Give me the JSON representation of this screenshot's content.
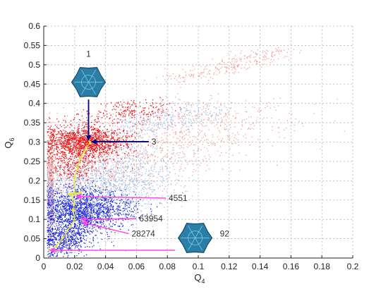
{
  "chart_data": {
    "type": "scatter",
    "xlabel": "Q",
    "xlabel_sub": "4",
    "ylabel": "Q",
    "ylabel_sub": "6",
    "xlim": [
      0,
      0.2
    ],
    "ylim": [
      0,
      0.6
    ],
    "x_ticks": [
      0,
      0.02,
      0.04,
      0.06,
      0.08,
      0.1,
      0.12,
      0.14,
      0.16,
      0.18,
      0.2
    ],
    "x_tick_labels": [
      "0",
      "0.02",
      "0.04",
      "0.06",
      "0.08",
      "0.1",
      "0.12",
      "0.14",
      "0.16",
      "0.18",
      "0.2"
    ],
    "y_ticks": [
      0,
      0.05,
      0.1,
      0.15,
      0.2,
      0.25,
      0.3,
      0.35,
      0.4,
      0.45,
      0.5,
      0.55,
      0.6
    ],
    "y_tick_labels": [
      "0",
      "0.05",
      "0.1",
      "0.15",
      "0.2",
      "0.25",
      "0.3",
      "0.35",
      "0.4",
      "0.45",
      "0.5",
      "0.55",
      "0.6"
    ],
    "grid": true,
    "colors": {
      "light_red": "#f4a0a0",
      "red": "#ee1111",
      "light_blue": "#9ec4ea",
      "blue": "#1a22dd",
      "path": "#e8e83a",
      "arrow_dark": "#00007a",
      "arrow_magenta": "#ff44ee",
      "cluster_image": "#2a7fa8"
    },
    "clouds": [
      {
        "color": "light_red",
        "center": [
          0.04,
          0.25
        ],
        "main_axis": [
          0.15,
          0.25
        ],
        "spread": [
          0.035,
          0.03
        ],
        "count": 1800
      },
      {
        "color": "light_red",
        "center": [
          0.12,
          0.5
        ],
        "main_axis": [
          0.07,
          0.08
        ],
        "spread": [
          0.01,
          0.006
        ],
        "count": 260
      },
      {
        "color": "light_blue",
        "center": [
          0.035,
          0.18
        ],
        "main_axis": [
          0.04,
          0.12
        ],
        "spread": [
          0.02,
          0.045
        ],
        "count": 1700
      },
      {
        "color": "light_blue",
        "center": [
          0.08,
          0.36
        ],
        "main_axis": [
          0.06,
          0.06
        ],
        "spread": [
          0.012,
          0.015
        ],
        "count": 320
      },
      {
        "color": "red",
        "center": [
          0.026,
          0.3
        ],
        "main_axis": [
          0.012,
          0.005
        ],
        "spread": [
          0.013,
          0.022
        ],
        "count": 1400
      },
      {
        "color": "red",
        "center": [
          0.017,
          0.24
        ],
        "main_axis": [
          0.0,
          0.03
        ],
        "spread": [
          0.009,
          0.02
        ],
        "count": 250
      },
      {
        "color": "red",
        "center": [
          0.055,
          0.38
        ],
        "main_axis": [
          0.02,
          0.03
        ],
        "spread": [
          0.012,
          0.012
        ],
        "count": 200
      },
      {
        "color": "blue",
        "center": [
          0.022,
          0.12
        ],
        "main_axis": [
          0.0,
          0.05
        ],
        "spread": [
          0.012,
          0.03
        ],
        "count": 1300
      },
      {
        "color": "blue",
        "center": [
          0.012,
          0.05
        ],
        "main_axis": [
          0.0,
          0.02
        ],
        "spread": [
          0.008,
          0.02
        ],
        "count": 500
      },
      {
        "color": "blue",
        "center": [
          0.04,
          0.12
        ],
        "main_axis": [
          0.02,
          0.03
        ],
        "spread": [
          0.01,
          0.02
        ],
        "count": 300
      }
    ],
    "path_points": [
      [
        0.03,
        0.3
      ],
      [
        0.027,
        0.28
      ],
      [
        0.024,
        0.26
      ],
      [
        0.022,
        0.235
      ],
      [
        0.02,
        0.21
      ],
      [
        0.02,
        0.17
      ],
      [
        0.016,
        0.165
      ],
      [
        0.024,
        0.17
      ],
      [
        0.018,
        0.16
      ],
      [
        0.02,
        0.14
      ],
      [
        0.019,
        0.125
      ],
      [
        0.02,
        0.1
      ],
      [
        0.017,
        0.08
      ],
      [
        0.012,
        0.05
      ],
      [
        0.008,
        0.03
      ],
      [
        0.004,
        0.02
      ]
    ],
    "annotations": [
      {
        "label": "1",
        "kind": "cluster_image",
        "image_at": [
          0.029,
          0.455
        ],
        "arrow_from": [
          0.029,
          0.41
        ],
        "arrow_to": [
          0.029,
          0.305
        ],
        "color": "arrow_dark"
      },
      {
        "label": "3",
        "arrow_from": [
          0.068,
          0.301
        ],
        "arrow_to": [
          0.031,
          0.301
        ],
        "color": "arrow_dark"
      },
      {
        "label": "4551",
        "arrow_from": [
          0.079,
          0.155
        ],
        "arrow_to": [
          0.021,
          0.159
        ],
        "color": "arrow_magenta"
      },
      {
        "label": "63954",
        "arrow_from": [
          0.06,
          0.102
        ],
        "arrow_to": [
          0.024,
          0.1
        ],
        "color": "arrow_magenta"
      },
      {
        "label": "28274",
        "arrow_from": [
          0.055,
          0.063
        ],
        "arrow_to": [
          0.025,
          0.092
        ],
        "color": "arrow_magenta"
      },
      {
        "label": "92",
        "kind": "cluster_image",
        "image_at": [
          0.098,
          0.052
        ],
        "arrow_from": [
          0.085,
          0.02
        ],
        "arrow_to": [
          0.004,
          0.02
        ],
        "color": "arrow_magenta"
      }
    ]
  }
}
